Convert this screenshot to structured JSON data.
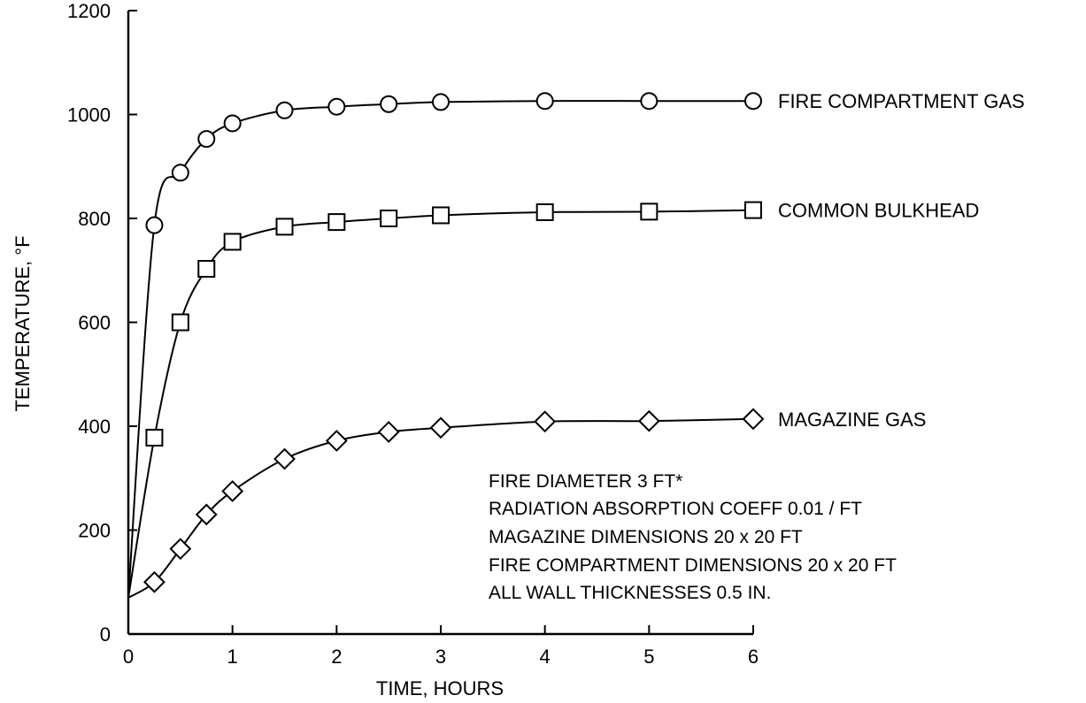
{
  "chart_data": {
    "type": "line",
    "xlabel": "TIME, HOURS",
    "ylabel": "TEMPERATURE, °F",
    "xlim": [
      0,
      6
    ],
    "ylim": [
      0,
      1200
    ],
    "x_ticks": [
      0,
      1,
      2,
      3,
      4,
      5,
      6
    ],
    "y_ticks": [
      0,
      200,
      400,
      600,
      800,
      1000,
      1200
    ],
    "grid": false,
    "legend": "inline labels at right end of each curve",
    "series": [
      {
        "name": "FIRE COMPARTMENT GAS",
        "marker": "circle",
        "start": [
          0,
          70
        ],
        "x": [
          0.25,
          0.5,
          0.75,
          1,
          1.5,
          2,
          2.5,
          3,
          4,
          5,
          6
        ],
        "y": [
          787,
          888,
          953,
          983,
          1008,
          1015,
          1020,
          1024,
          1026,
          1026,
          1026
        ]
      },
      {
        "name": "COMMON BULKHEAD",
        "marker": "square",
        "start": [
          0,
          70
        ],
        "x": [
          0.25,
          0.5,
          0.75,
          1,
          1.5,
          2,
          2.5,
          3,
          4,
          5,
          6
        ],
        "y": [
          378,
          600,
          703,
          755,
          784,
          793,
          800,
          806,
          812,
          813,
          816
        ]
      },
      {
        "name": "MAGAZINE GAS",
        "marker": "diamond",
        "start": [
          0,
          70
        ],
        "x": [
          0.25,
          0.5,
          0.75,
          1,
          1.5,
          2,
          2.5,
          3,
          4,
          5,
          6
        ],
        "y": [
          100,
          164,
          230,
          275,
          337,
          372,
          389,
          397,
          409,
          410,
          414
        ]
      }
    ],
    "annotations": [
      "FIRE DIAMETER 3 FT*",
      "RADIATION ABSORPTION COEFF 0.01 / FT",
      "MAGAZINE DIMENSIONS 20 x 20 FT",
      "FIRE COMPARTMENT DIMENSIONS 20 x 20 FT",
      "ALL WALL THICKNESSES 0.5 IN."
    ]
  }
}
